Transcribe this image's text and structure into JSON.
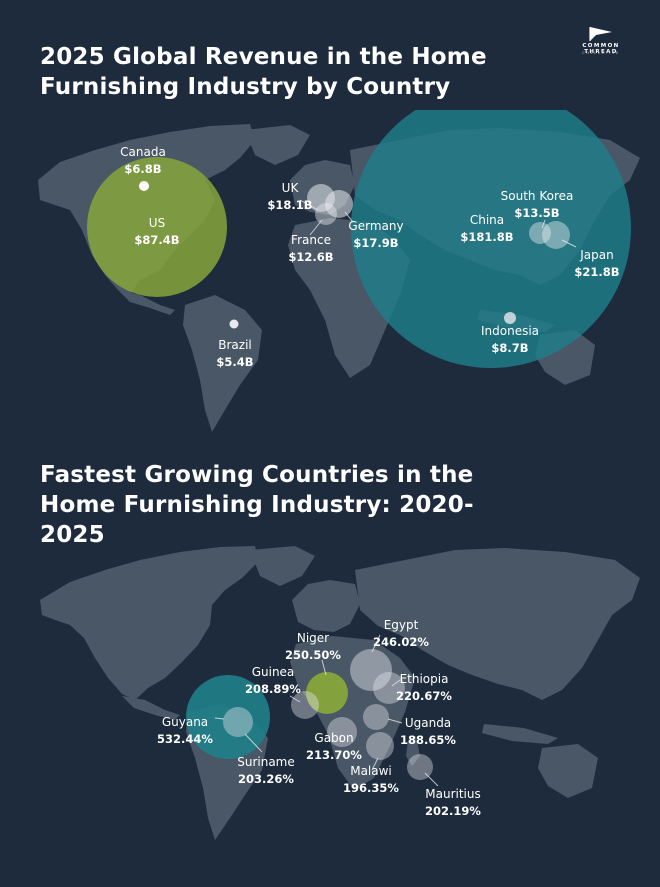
{
  "logo": {
    "brand": "COMMON THREAD",
    "sub": "COLLECTIVE"
  },
  "colors": {
    "background": "#1e2b3d",
    "land": "#4a5766",
    "teal": "#1f7f8a",
    "olive": "#86a53b",
    "white_bubble": "#e6e9ee"
  },
  "revenue_map": {
    "title": "2025 Global Revenue in the Home Furnishing Industry by Country",
    "countries": [
      {
        "name": "Canada",
        "value": "$6.8B"
      },
      {
        "name": "US",
        "value": "$87.4B"
      },
      {
        "name": "Brazil",
        "value": "$5.4B"
      },
      {
        "name": "UK",
        "value": "$18.1B"
      },
      {
        "name": "France",
        "value": "$12.6B"
      },
      {
        "name": "Germany",
        "value": "$17.9B"
      },
      {
        "name": "China",
        "value": "$181.8B"
      },
      {
        "name": "South Korea",
        "value": "$13.5B"
      },
      {
        "name": "Japan",
        "value": "$21.8B"
      },
      {
        "name": "Indonesia",
        "value": "$8.7B"
      }
    ]
  },
  "growth_map": {
    "title": "Fastest Growing Countries in the Home Furnishing Industry: 2020-2025",
    "countries": [
      {
        "name": "Guyana",
        "value": "532.44%"
      },
      {
        "name": "Suriname",
        "value": "203.26%"
      },
      {
        "name": "Niger",
        "value": "250.50%"
      },
      {
        "name": "Guinea",
        "value": "208.89%"
      },
      {
        "name": "Egypt",
        "value": "246.02%"
      },
      {
        "name": "Ethiopia",
        "value": "220.67%"
      },
      {
        "name": "Gabon",
        "value": "213.70%"
      },
      {
        "name": "Uganda",
        "value": "188.65%"
      },
      {
        "name": "Malawi",
        "value": "196.35%"
      },
      {
        "name": "Mauritius",
        "value": "202.19%"
      }
    ]
  }
}
